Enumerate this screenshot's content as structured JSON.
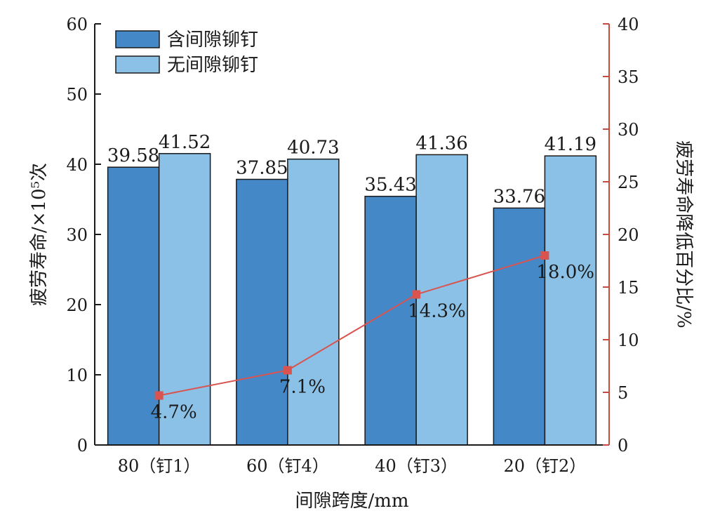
{
  "chart_data": {
    "type": "bar",
    "categories": [
      "80（钉1）",
      "60（钉4）",
      "40（钉3）",
      "20（钉2）"
    ],
    "series": [
      {
        "name": "含间隙铆钉",
        "values": [
          39.58,
          37.85,
          35.43,
          33.76
        ],
        "color": "#4488c8"
      },
      {
        "name": "无间隙铆钉",
        "values": [
          41.52,
          40.73,
          41.36,
          41.19
        ],
        "color": "#8bc1e7"
      }
    ],
    "line_series": {
      "values": [
        4.7,
        7.1,
        14.3,
        18.0
      ],
      "labels": [
        "4.7%",
        "7.1%",
        "14.3%",
        "18.0%"
      ],
      "color": "#d9534f",
      "axis": "right"
    },
    "xlabel": "间隙跨度/mm",
    "ylabel": "疲劳寿命/×10⁵次",
    "y2label": "疲劳寿命降低百分比/%",
    "ylim": [
      0,
      60
    ],
    "y2lim": [
      0,
      40
    ],
    "yticks": [
      "0",
      "10",
      "20",
      "30",
      "40",
      "50",
      "60"
    ],
    "y2ticks": [
      "0",
      "5",
      "10",
      "15",
      "20",
      "25",
      "30",
      "35",
      "40"
    ],
    "legend_position": "top-left",
    "grid": false
  }
}
